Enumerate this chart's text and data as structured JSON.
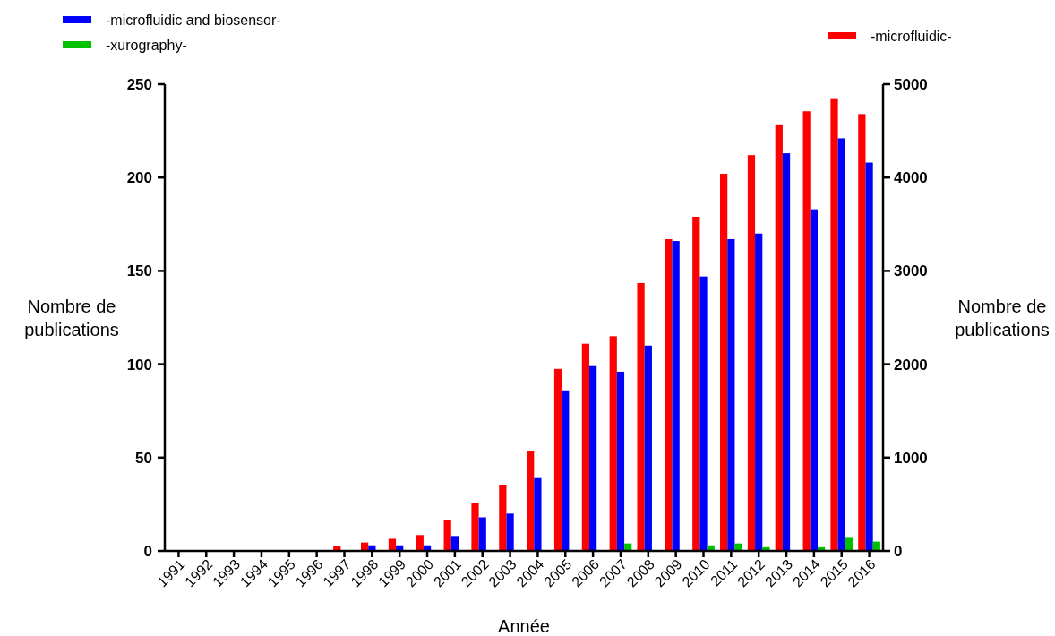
{
  "chart_data": {
    "type": "bar",
    "xlabel": "Année",
    "ylabel": "Nombre de publications",
    "y2label": "Nombre de publications",
    "categories": [
      "1991",
      "1992",
      "1993",
      "1994",
      "1995",
      "1996",
      "1997",
      "1998",
      "1999",
      "2000",
      "2001",
      "2002",
      "2003",
      "2004",
      "2005",
      "2006",
      "2007",
      "2008",
      "2009",
      "2010",
      "2011",
      "2012",
      "2013",
      "2014",
      "2015",
      "2016"
    ],
    "series": [
      {
        "name": "-microfluidic-",
        "color": "#ff0000",
        "axis": "y2",
        "values": [
          0,
          0,
          0,
          0,
          0,
          0,
          50,
          90,
          130,
          170,
          330,
          510,
          710,
          1070,
          1950,
          2220,
          2300,
          2870,
          3340,
          3580,
          4040,
          4240,
          4570,
          4710,
          4850,
          4680
        ]
      },
      {
        "name": "-microfluidic and biosensor-",
        "color": "#0000ff",
        "values": [
          0,
          0,
          0,
          0,
          0,
          0,
          0,
          3,
          3,
          3,
          8,
          18,
          20,
          39,
          86,
          99,
          96,
          110,
          166,
          147,
          167,
          170,
          213,
          183,
          221,
          208
        ]
      },
      {
        "name": "-xurography-",
        "color": "#00c000",
        "values": [
          0,
          0,
          0,
          0,
          0,
          0,
          0,
          0,
          0,
          0,
          0,
          0,
          0,
          0,
          0,
          0,
          4,
          0,
          0,
          3,
          4,
          2,
          0,
          2,
          7,
          5
        ]
      }
    ],
    "ylim": [
      0,
      250
    ],
    "yticks": [
      0,
      50,
      100,
      150,
      200,
      250
    ],
    "y2lim": [
      0,
      5000
    ],
    "y2ticks": [
      0,
      1000,
      2000,
      3000,
      4000,
      5000
    ],
    "legend": "top",
    "grid": false
  }
}
